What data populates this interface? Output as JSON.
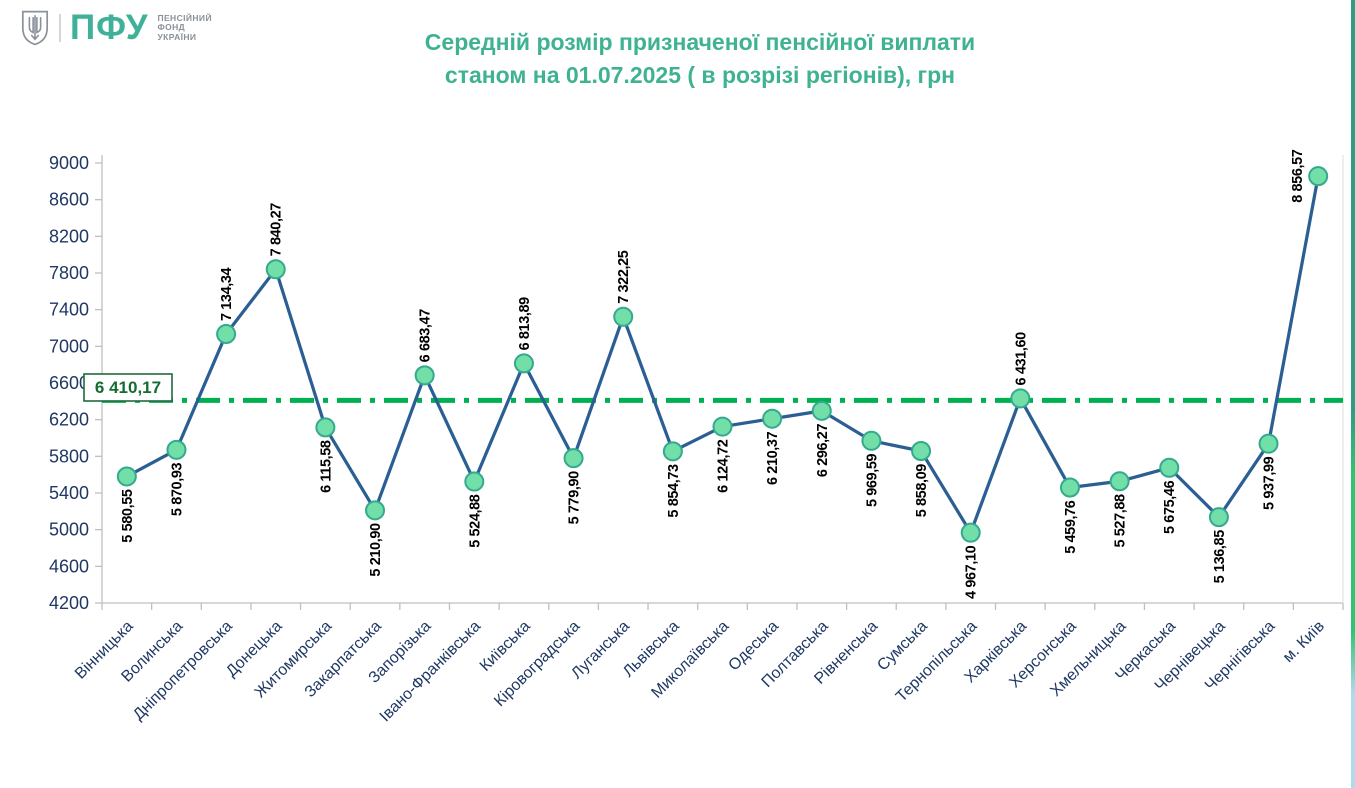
{
  "logo": {
    "abbr": "ПФУ",
    "org_line1": "ПЕНСІЙНИЙ",
    "org_line2": "ФОНД",
    "org_line3": "УКРАЇНИ"
  },
  "title": {
    "line1": "Середній розмір призначеної пенсійної виплати",
    "line2": "станом на 01.07.2025 ( в розрізі регіонів), грн"
  },
  "chart_data": {
    "type": "line",
    "title": "Середній розмір призначеної пенсійної виплати станом на 01.07.2025 ( в розрізі регіонів), грн",
    "unit": "грн",
    "categories": [
      "Вінницька",
      "Волинська",
      "Дніпропетровська",
      "Донецька",
      "Житомирська",
      "Закарпатська",
      "Запорізька",
      "Івано-Франківська",
      "Київська",
      "Кіровоградська",
      "Луганська",
      "Львівська",
      "Миколаївська",
      "Одеська",
      "Полтавська",
      "Рівненська",
      "Сумська",
      "Тернопільська",
      "Харківська",
      "Херсонська",
      "Хмельницька",
      "Черкаська",
      "Чернівецька",
      "Чернігівська",
      "м. Київ"
    ],
    "values": [
      5580.55,
      5870.93,
      7134.34,
      7840.27,
      6115.58,
      5210.9,
      6683.47,
      5524.88,
      6813.89,
      5779.9,
      7322.25,
      5854.73,
      6124.72,
      6210.37,
      6296.27,
      5969.59,
      5858.09,
      4967.1,
      6431.6,
      5459.76,
      5527.88,
      5675.46,
      5136.85,
      5937.99,
      8856.57
    ],
    "value_labels": [
      "5 580,55",
      "5 870,93",
      "7 134,34",
      "7 840,27",
      "6 115,58",
      "5 210,90",
      "6 683,47",
      "5 524,88",
      "6 813,89",
      "5 779,90",
      "7 322,25",
      "5 854,73",
      "6 124,72",
      "6 210,37",
      "6 296,27",
      "5 969,59",
      "5 858,09",
      "4 967,10",
      "6 431,60",
      "5 459,76",
      "5 527,88",
      "5 675,46",
      "5 136,85",
      "5 937,99",
      "8 856,57"
    ],
    "average": 6410.17,
    "average_label": "6 410,17",
    "ylim": [
      4200,
      9000
    ],
    "ytick_step": 400,
    "yticks": [
      4200,
      4600,
      5000,
      5400,
      5800,
      6200,
      6600,
      7000,
      7400,
      7800,
      8200,
      8600,
      9000
    ],
    "grid": false,
    "legend": false,
    "marker": "circle",
    "colors": {
      "title": "#3EB291",
      "logo_teal": "#3FB199",
      "logo_gray": "#8A9199",
      "line": "#2B5F94",
      "marker_fill": "#72DFA9",
      "marker_stroke": "#35A98E",
      "average_line": "#00B050",
      "average_text": "#146C32",
      "average_box_border": "#1E6B3C",
      "axis_text": "#1F3864",
      "data_label": "#000000",
      "axis_line": "#BFBFBF"
    }
  }
}
